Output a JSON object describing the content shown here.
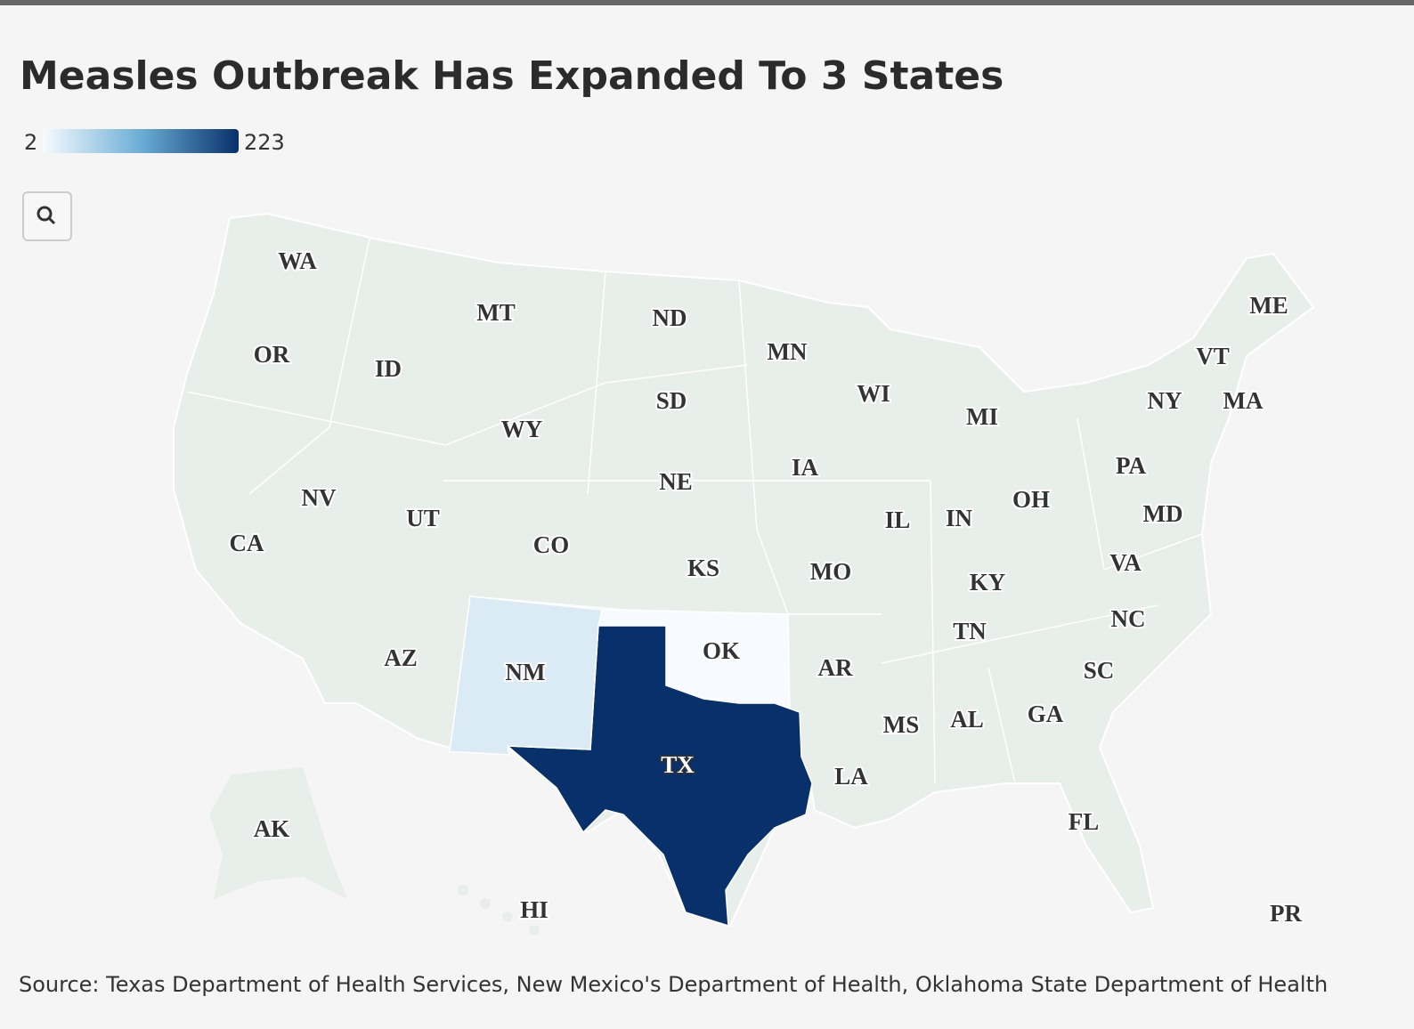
{
  "chart_data": {
    "type": "map",
    "title": "Measles Outbreak Has Expanded To 3 States",
    "colorbar": {
      "min": 2,
      "max": 223,
      "colors": [
        "#f7fbff",
        "#6baed6",
        "#08306b"
      ]
    },
    "base_color": "#e8eeea",
    "states": [
      {
        "name": "WA"
      },
      {
        "name": "OR"
      },
      {
        "name": "ID"
      },
      {
        "name": "MT"
      },
      {
        "name": "ND"
      },
      {
        "name": "SD"
      },
      {
        "name": "WY"
      },
      {
        "name": "NE"
      },
      {
        "name": "MN"
      },
      {
        "name": "WI"
      },
      {
        "name": "MI"
      },
      {
        "name": "IA"
      },
      {
        "name": "IL"
      },
      {
        "name": "IN"
      },
      {
        "name": "OH"
      },
      {
        "name": "PA"
      },
      {
        "name": "NY"
      },
      {
        "name": "VT"
      },
      {
        "name": "ME"
      },
      {
        "name": "MA"
      },
      {
        "name": "MD"
      },
      {
        "name": "VA"
      },
      {
        "name": "NC"
      },
      {
        "name": "SC"
      },
      {
        "name": "GA"
      },
      {
        "name": "FL"
      },
      {
        "name": "AL"
      },
      {
        "name": "MS"
      },
      {
        "name": "TN"
      },
      {
        "name": "KY"
      },
      {
        "name": "MO"
      },
      {
        "name": "AR"
      },
      {
        "name": "LA"
      },
      {
        "name": "KS"
      },
      {
        "name": "OK",
        "value": 2
      },
      {
        "name": "TX",
        "value": 223
      },
      {
        "name": "NM",
        "value": 25
      },
      {
        "name": "CO"
      },
      {
        "name": "UT"
      },
      {
        "name": "NV"
      },
      {
        "name": "CA"
      },
      {
        "name": "AZ"
      },
      {
        "name": "AK"
      },
      {
        "name": "HI"
      },
      {
        "name": "PR"
      }
    ],
    "source": "Source: Texas Department of Health Services, New Mexico's Department of Health, Oklahoma State Department of Health"
  }
}
